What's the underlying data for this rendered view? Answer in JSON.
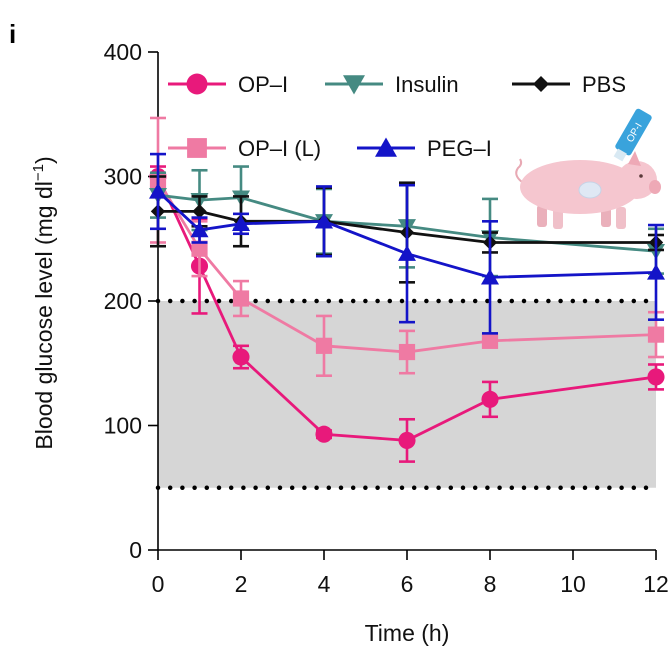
{
  "panel_label": "i",
  "chart_data": {
    "type": "line",
    "xlabel": "Time (h)",
    "ylabel": {
      "main": "Blood glucose level (mg dl",
      "superscript": "−1",
      "close": ")"
    },
    "xlim": [
      0,
      12
    ],
    "ylim": [
      0,
      400
    ],
    "xticks": [
      0,
      2,
      4,
      6,
      8,
      10,
      12
    ],
    "yticks": [
      0,
      100,
      200,
      300,
      400
    ],
    "normoglycemic_band": {
      "low": 50,
      "high": 200,
      "color": "#d6d6d6"
    },
    "series": [
      {
        "name": "OP–I",
        "color": "#e8197b",
        "marker": "circle",
        "points": [
          {
            "x": 0,
            "y": 300,
            "err": 8
          },
          {
            "x": 1,
            "y": 228,
            "err": 38
          },
          {
            "x": 2,
            "y": 155,
            "err": 9
          },
          {
            "x": 4,
            "y": 93,
            "err": 3
          },
          {
            "x": 6,
            "y": 88,
            "err": 17
          },
          {
            "x": 8,
            "y": 121,
            "err": 14
          },
          {
            "x": 12,
            "y": 139,
            "err": 10
          }
        ]
      },
      {
        "name": "OP–I (L)",
        "color": "#ef7aa3",
        "marker": "square",
        "points": [
          {
            "x": 0,
            "y": 297,
            "err": 50
          },
          {
            "x": 1,
            "y": 242,
            "err": 22
          },
          {
            "x": 2,
            "y": 202,
            "err": 14
          },
          {
            "x": 4,
            "y": 164,
            "err": 24
          },
          {
            "x": 6,
            "y": 159,
            "err": 17
          },
          {
            "x": 8,
            "y": 168,
            "err": 4
          },
          {
            "x": 12,
            "y": 173,
            "err": 18
          }
        ]
      },
      {
        "name": "Insulin",
        "color": "#458a82",
        "marker": "triangle-down",
        "points": [
          {
            "x": 0,
            "y": 285,
            "err": 18
          },
          {
            "x": 1,
            "y": 281,
            "err": 24
          },
          {
            "x": 2,
            "y": 283,
            "err": 25
          },
          {
            "x": 4,
            "y": 264,
            "err": 26
          },
          {
            "x": 6,
            "y": 260,
            "err": 33
          },
          {
            "x": 8,
            "y": 251,
            "err": 31
          },
          {
            "x": 12,
            "y": 240,
            "err": 18
          }
        ]
      },
      {
        "name": "PBS",
        "color": "#111111",
        "marker": "diamond",
        "points": [
          {
            "x": 0,
            "y": 272,
            "err": 28
          },
          {
            "x": 1,
            "y": 272,
            "err": 12
          },
          {
            "x": 2,
            "y": 264,
            "err": 20
          },
          {
            "x": 4,
            "y": 264,
            "err": 27
          },
          {
            "x": 6,
            "y": 255,
            "err": 40
          },
          {
            "x": 8,
            "y": 247,
            "err": 8
          },
          {
            "x": 12,
            "y": 247,
            "err": 6
          }
        ]
      },
      {
        "name": "PEG–I",
        "color": "#1414c8",
        "marker": "triangle-up",
        "points": [
          {
            "x": 0,
            "y": 288,
            "err": 30
          },
          {
            "x": 1,
            "y": 257,
            "err": 10
          },
          {
            "x": 2,
            "y": 262,
            "err": 8
          },
          {
            "x": 4,
            "y": 264,
            "err": 28
          },
          {
            "x": 6,
            "y": 238,
            "err": 55
          },
          {
            "x": 8,
            "y": 219,
            "err": 45
          },
          {
            "x": 12,
            "y": 223,
            "err": 38
          }
        ]
      }
    ],
    "legend": {
      "placement": "top",
      "rows": [
        [
          "OP–I",
          "Insulin",
          "PBS"
        ],
        [
          "OP–I (L)",
          "PEG–I"
        ]
      ]
    },
    "illustration": {
      "subject": "pig",
      "applicator_label": "OP-I"
    }
  }
}
